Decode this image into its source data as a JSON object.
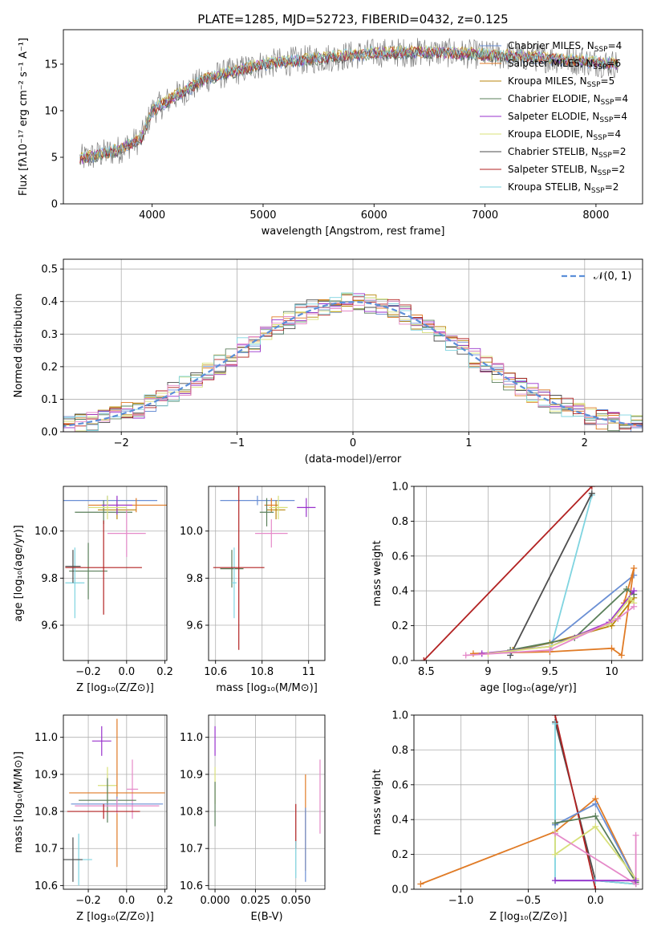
{
  "figure": {
    "title": "PLATE=1285, MJD=52723, FIBERID=0432, z=0.125"
  },
  "colors": {
    "chabrier_miles": "#6a8fd4",
    "salpeter_miles": "#e07b26",
    "kroupa_miles": "#b8860b",
    "chabrier_elodie": "#5a7f5a",
    "salpeter_elodie": "#9932cc",
    "kroupa_elodie": "#d8e07a",
    "chabrier_stelib": "#4d4d4d",
    "salpeter_stelib": "#b22222",
    "kroupa_stelib": "#7fd4e0",
    "pink": "#e58ac9",
    "gauss": "#5b8fd9"
  },
  "chart_data": [
    {
      "id": "spectrum",
      "type": "line",
      "xlabel": "wavelength [Angstrom, rest frame]",
      "ylabel": "Flux [fλ10⁻¹⁷ erg cm⁻² s⁻¹ A⁻¹]",
      "xlim": [
        3200,
        8420
      ],
      "ylim": [
        0,
        18.7
      ],
      "xticks": [
        4000,
        5000,
        6000,
        7000,
        8000
      ],
      "yticks": [
        0,
        5,
        10,
        15
      ],
      "legend_position": "top-right",
      "series": [
        {
          "name": "Chabrier MILES, N",
          "sub": "SSP",
          "suffix": "=4",
          "color": "chabrier_miles"
        },
        {
          "name": "Salpeter MILES, N",
          "sub": "SSP",
          "suffix": "=6",
          "color": "salpeter_miles"
        },
        {
          "name": "Kroupa MILES, N",
          "sub": "SSP",
          "suffix": "=5",
          "color": "kroupa_miles"
        },
        {
          "name": "Chabrier ELODIE, N",
          "sub": "SSP",
          "suffix": "=4",
          "color": "chabrier_elodie"
        },
        {
          "name": "Salpeter ELODIE, N",
          "sub": "SSP",
          "suffix": "=4",
          "color": "salpeter_elodie"
        },
        {
          "name": "Kroupa ELODIE, N",
          "sub": "SSP",
          "suffix": "=4",
          "color": "kroupa_elodie"
        },
        {
          "name": "Chabrier STELIB, N",
          "sub": "SSP",
          "suffix": "=2",
          "color": "chabrier_stelib"
        },
        {
          "name": "Salpeter STELIB, N",
          "sub": "SSP",
          "suffix": "=2",
          "color": "salpeter_stelib"
        },
        {
          "name": "Kroupa STELIB, N",
          "sub": "SSP",
          "suffix": "=2",
          "color": "kroupa_stelib"
        }
      ],
      "continuum_x": [
        3350,
        3500,
        3700,
        3900,
        4000,
        4200,
        4500,
        5000,
        5500,
        6000,
        6500,
        7000,
        7500,
        8000,
        8200
      ],
      "continuum_y": [
        4.8,
        5.2,
        5.8,
        7.0,
        10.0,
        11.5,
        13.5,
        15.0,
        15.6,
        16.2,
        16.3,
        16.0,
        15.7,
        15.2,
        15.0
      ]
    },
    {
      "id": "residual_hist",
      "type": "bar",
      "xlabel": "(data-model)/error",
      "ylabel": "Normed distribution",
      "xlim": [
        -2.5,
        2.5
      ],
      "ylim": [
        0,
        0.53
      ],
      "xticks": [
        -2,
        -1,
        0,
        1,
        2
      ],
      "xtick_labels": [
        "−2",
        "−1",
        "0",
        "1",
        "2"
      ],
      "yticks": [
        0.0,
        0.1,
        0.2,
        0.3,
        0.4,
        0.5
      ],
      "grid": true,
      "legend_position": "top-right",
      "legend": "𝒩(0, 1)",
      "bin_width": 0.1,
      "gauss_mean": 0.0,
      "gauss_sigma": 1.0
    },
    {
      "id": "age_vs_Z",
      "type": "scatter",
      "xlabel": "Z [log₁₀(Z/Z⊙)]",
      "ylabel": "age  [log₁₀(age/yr)]",
      "xlim": [
        -0.33,
        0.21
      ],
      "ylim": [
        9.45,
        10.19
      ],
      "xticks": [
        -0.2,
        0.0,
        0.2
      ],
      "xtick_labels": [
        "−0.2",
        "0.0",
        "0.2"
      ],
      "yticks": [
        9.6,
        9.8,
        10.0
      ],
      "grid": true,
      "points": [
        {
          "x": -0.1,
          "xerr": 0.26,
          "y": 10.13,
          "yerr": 0.02,
          "c": "chabrier_miles"
        },
        {
          "x": 0.05,
          "xerr": 0.25,
          "y": 10.11,
          "yerr": 0.03,
          "c": "salpeter_miles"
        },
        {
          "x": -0.05,
          "xerr": 0.1,
          "y": 10.09,
          "yerr": 0.04,
          "c": "kroupa_miles"
        },
        {
          "x": -0.12,
          "xerr": 0.15,
          "y": 10.08,
          "yerr": 0.05,
          "c": "chabrier_elodie"
        },
        {
          "x": -0.05,
          "xerr": 0.08,
          "y": 10.11,
          "yerr": 0.04,
          "c": "salpeter_elodie"
        },
        {
          "x": -0.1,
          "xerr": 0.1,
          "y": 10.1,
          "yerr": 0.05,
          "c": "kroupa_elodie"
        },
        {
          "x": 0.0,
          "xerr": 0.1,
          "y": 9.99,
          "yerr": 0.1,
          "c": "pink"
        },
        {
          "x": -0.2,
          "xerr": 0.1,
          "y": 9.83,
          "yerr": 0.12,
          "c": "chabrier_elodie"
        },
        {
          "x": -0.27,
          "xerr": 0.05,
          "y": 9.78,
          "yerr": 0.15,
          "c": "kroupa_stelib"
        },
        {
          "x": -0.28,
          "xerr": 0.04,
          "y": 9.85,
          "yerr": 0.07,
          "c": "chabrier_stelib"
        },
        {
          "x": -0.12,
          "xerr": 0.2,
          "y": 9.845,
          "yerr": 0.2,
          "c": "salpeter_stelib"
        }
      ]
    },
    {
      "id": "age_vs_mass",
      "type": "scatter",
      "xlabel": "mass [log₁₀(M/M⊙)]",
      "ylim": [
        9.45,
        10.19
      ],
      "xlim": [
        10.57,
        11.07
      ],
      "xticks": [
        10.6,
        10.8,
        11.0
      ],
      "yticks": [
        9.6,
        9.8,
        10.0
      ],
      "grid": true,
      "points": [
        {
          "x": 10.78,
          "xerr": 0.16,
          "y": 10.13,
          "yerr": 0.02,
          "c": "chabrier_miles"
        },
        {
          "x": 10.84,
          "xerr": 0.03,
          "y": 10.11,
          "yerr": 0.03,
          "c": "salpeter_miles"
        },
        {
          "x": 10.86,
          "xerr": 0.04,
          "y": 10.09,
          "yerr": 0.04,
          "c": "kroupa_miles"
        },
        {
          "x": 10.82,
          "xerr": 0.03,
          "y": 10.08,
          "yerr": 0.06,
          "c": "chabrier_elodie"
        },
        {
          "x": 10.99,
          "xerr": 0.04,
          "y": 10.1,
          "yerr": 0.04,
          "c": "salpeter_elodie"
        },
        {
          "x": 10.87,
          "xerr": 0.04,
          "y": 10.1,
          "yerr": 0.05,
          "c": "kroupa_elodie"
        },
        {
          "x": 10.84,
          "xerr": 0.07,
          "y": 9.99,
          "yerr": 0.06,
          "c": "pink"
        },
        {
          "x": 10.67,
          "xerr": 0.05,
          "y": 9.84,
          "yerr": 0.08,
          "c": "chabrier_elodie"
        },
        {
          "x": 10.68,
          "xerr": 0.01,
          "y": 9.78,
          "yerr": 0.15,
          "c": "kroupa_stelib"
        },
        {
          "x": 10.7,
          "xerr": 0.11,
          "y": 9.845,
          "yerr": 0.35,
          "c": "salpeter_stelib"
        }
      ]
    },
    {
      "id": "weight_vs_age",
      "type": "line",
      "xlabel": "age  [log₁₀(age/yr)]",
      "ylabel": "mass weight",
      "xlim": [
        8.4,
        10.25
      ],
      "ylim": [
        0,
        1
      ],
      "xticks": [
        8.5,
        9.0,
        9.5,
        10.0
      ],
      "yticks": [
        0.0,
        0.2,
        0.4,
        0.6,
        0.8,
        1.0
      ],
      "grid": true,
      "series": [
        {
          "c": "salpeter_stelib",
          "x": [
            8.48,
            9.84
          ],
          "y": [
            0.0,
            1.0
          ]
        },
        {
          "c": "kroupa_stelib",
          "x": [
            9.5,
            9.84
          ],
          "y": [
            0.05,
            0.95
          ]
        },
        {
          "c": "chabrier_stelib",
          "x": [
            9.18,
            9.84
          ],
          "y": [
            0.03,
            0.96
          ]
        },
        {
          "c": "chabrier_miles",
          "x": [
            9.18,
            9.5,
            10.18
          ],
          "y": [
            0.05,
            0.1,
            0.49
          ]
        },
        {
          "c": "salpeter_miles",
          "x": [
            8.88,
            9.5,
            10.0,
            10.08,
            10.18,
            10.1
          ],
          "y": [
            0.04,
            0.05,
            0.07,
            0.03,
            0.53,
            0.33
          ]
        },
        {
          "c": "kroupa_miles",
          "x": [
            9.2,
            9.5,
            10.0,
            10.18
          ],
          "y": [
            0.06,
            0.1,
            0.2,
            0.36
          ]
        },
        {
          "c": "chabrier_elodie",
          "x": [
            9.18,
            9.7,
            10.12,
            10.18
          ],
          "y": [
            0.06,
            0.13,
            0.41,
            0.38
          ]
        },
        {
          "c": "salpeter_elodie",
          "x": [
            8.95,
            9.5,
            9.98,
            10.18
          ],
          "y": [
            0.04,
            0.08,
            0.22,
            0.4
          ]
        },
        {
          "c": "kroupa_elodie",
          "x": [
            9.0,
            9.5,
            9.98,
            10.15,
            10.18
          ],
          "y": [
            0.04,
            0.08,
            0.21,
            0.36,
            0.33
          ]
        },
        {
          "c": "pink",
          "x": [
            8.82,
            9.5,
            10.05,
            10.18
          ],
          "y": [
            0.03,
            0.06,
            0.24,
            0.31
          ]
        }
      ]
    },
    {
      "id": "mass_vs_Z",
      "type": "scatter",
      "xlabel": "Z [log₁₀(Z/Z⊙)]",
      "ylabel": "mass [log₁₀(M/M⊙)]",
      "xlim": [
        -0.33,
        0.21
      ],
      "ylim": [
        10.59,
        11.06
      ],
      "xticks": [
        -0.2,
        0.0,
        0.2
      ],
      "xtick_labels": [
        "−0.2",
        "0.0",
        "0.2"
      ],
      "yticks": [
        10.6,
        10.7,
        10.8,
        10.9,
        11.0
      ],
      "grid": true,
      "points": [
        {
          "x": -0.13,
          "xerr": 0.05,
          "y": 10.99,
          "yerr": 0.04,
          "c": "salpeter_elodie"
        },
        {
          "x": -0.1,
          "xerr": 0.05,
          "y": 10.87,
          "yerr": 0.05,
          "c": "kroupa_elodie"
        },
        {
          "x": 0.03,
          "xerr": 0.03,
          "y": 10.86,
          "yerr": 0.08,
          "c": "pink"
        },
        {
          "x": -0.05,
          "xerr": 0.25,
          "y": 10.85,
          "yerr": 0.2,
          "c": "salpeter_miles"
        },
        {
          "x": -0.1,
          "xerr": 0.15,
          "y": 10.83,
          "yerr": 0.06,
          "c": "chabrier_elodie"
        },
        {
          "x": -0.05,
          "xerr": 0.24,
          "y": 10.82,
          "yerr": 0.02,
          "c": "chabrier_miles"
        },
        {
          "x": -0.05,
          "xerr": 0.22,
          "y": 10.815,
          "yerr": 0.02,
          "c": "pink"
        },
        {
          "x": -0.12,
          "xerr": 0.19,
          "y": 10.8,
          "yerr": 0.02,
          "c": "salpeter_stelib"
        },
        {
          "x": -0.25,
          "xerr": 0.07,
          "y": 10.67,
          "yerr": 0.07,
          "c": "kroupa_stelib"
        },
        {
          "x": -0.28,
          "xerr": 0.05,
          "y": 10.67,
          "yerr": 0.06,
          "c": "chabrier_stelib"
        }
      ]
    },
    {
      "id": "mass_vs_ebv",
      "type": "scatter",
      "xlabel": "E(B-V)",
      "xlim": [
        -0.004,
        0.068
      ],
      "ylim": [
        10.59,
        11.06
      ],
      "xticks": [
        0.0,
        0.025,
        0.05
      ],
      "xtick_labels": [
        "0.000",
        "0.025",
        "0.050"
      ],
      "yticks": [
        10.6,
        10.7,
        10.8,
        10.9,
        11.0
      ],
      "grid": true,
      "points": [
        {
          "x": 0.0,
          "xerr": 0,
          "y": 10.99,
          "yerr": 0.04,
          "c": "salpeter_elodie"
        },
        {
          "x": 0.0,
          "xerr": 0,
          "y": 10.87,
          "yerr": 0.05,
          "c": "kroupa_elodie"
        },
        {
          "x": 0.0,
          "xerr": 0,
          "y": 10.82,
          "yerr": 0.06,
          "c": "chabrier_elodie"
        },
        {
          "x": 0.05,
          "xerr": 0,
          "y": 10.76,
          "yerr": 0.06,
          "c": "salpeter_stelib"
        },
        {
          "x": 0.05,
          "xerr": 0,
          "y": 10.67,
          "yerr": 0.05,
          "c": "kroupa_stelib"
        },
        {
          "x": 0.056,
          "xerr": 0,
          "y": 10.77,
          "yerr": 0.13,
          "c": "salpeter_miles"
        },
        {
          "x": 0.056,
          "xerr": 0,
          "y": 10.71,
          "yerr": 0.1,
          "c": "chabrier_miles"
        },
        {
          "x": 0.065,
          "xerr": 0,
          "y": 10.84,
          "yerr": 0.1,
          "c": "pink"
        }
      ]
    },
    {
      "id": "weight_vs_Z",
      "type": "line",
      "xlabel": "Z [log₁₀(Z/Z⊙)]",
      "ylabel": "mass weight",
      "xlim": [
        -1.35,
        0.35
      ],
      "ylim": [
        0,
        1
      ],
      "xticks": [
        -1.0,
        -0.5,
        0.0
      ],
      "xtick_labels": [
        "−1.0",
        "−0.5",
        "0.0"
      ],
      "yticks": [
        0.0,
        0.2,
        0.4,
        0.6,
        0.8,
        1.0
      ],
      "grid": true,
      "series": [
        {
          "c": "chabrier_stelib",
          "x": [
            -0.3,
            0.0,
            0.3
          ],
          "y": [
            0.96,
            0.05,
            0.03
          ]
        },
        {
          "c": "salpeter_stelib",
          "x": [
            -0.3,
            0.0
          ],
          "y": [
            1.0,
            0.0
          ]
        },
        {
          "c": "kroupa_stelib",
          "x": [
            -0.3,
            -0.3,
            0.0,
            0.3
          ],
          "y": [
            0.95,
            0.05,
            0.05,
            0.03
          ]
        },
        {
          "c": "salpeter_miles",
          "x": [
            -1.3,
            -0.3,
            0.0,
            0.3
          ],
          "y": [
            0.03,
            0.33,
            0.52,
            0.05
          ]
        },
        {
          "c": "chabrier_miles",
          "x": [
            -0.3,
            0.0,
            0.3
          ],
          "y": [
            0.37,
            0.49,
            0.05
          ]
        },
        {
          "c": "chabrier_elodie",
          "x": [
            -0.3,
            0.0,
            0.3
          ],
          "y": [
            0.38,
            0.42,
            0.04
          ]
        },
        {
          "c": "kroupa_elodie",
          "x": [
            -0.3,
            -0.3,
            0.0,
            0.3
          ],
          "y": [
            0.33,
            0.2,
            0.36,
            0.06
          ]
        },
        {
          "c": "pink",
          "x": [
            -0.3,
            0.3,
            0.3
          ],
          "y": [
            0.32,
            0.03,
            0.31
          ]
        },
        {
          "c": "salpeter_elodie",
          "x": [
            -0.3,
            0.3
          ],
          "y": [
            0.05,
            0.05
          ]
        }
      ]
    }
  ]
}
